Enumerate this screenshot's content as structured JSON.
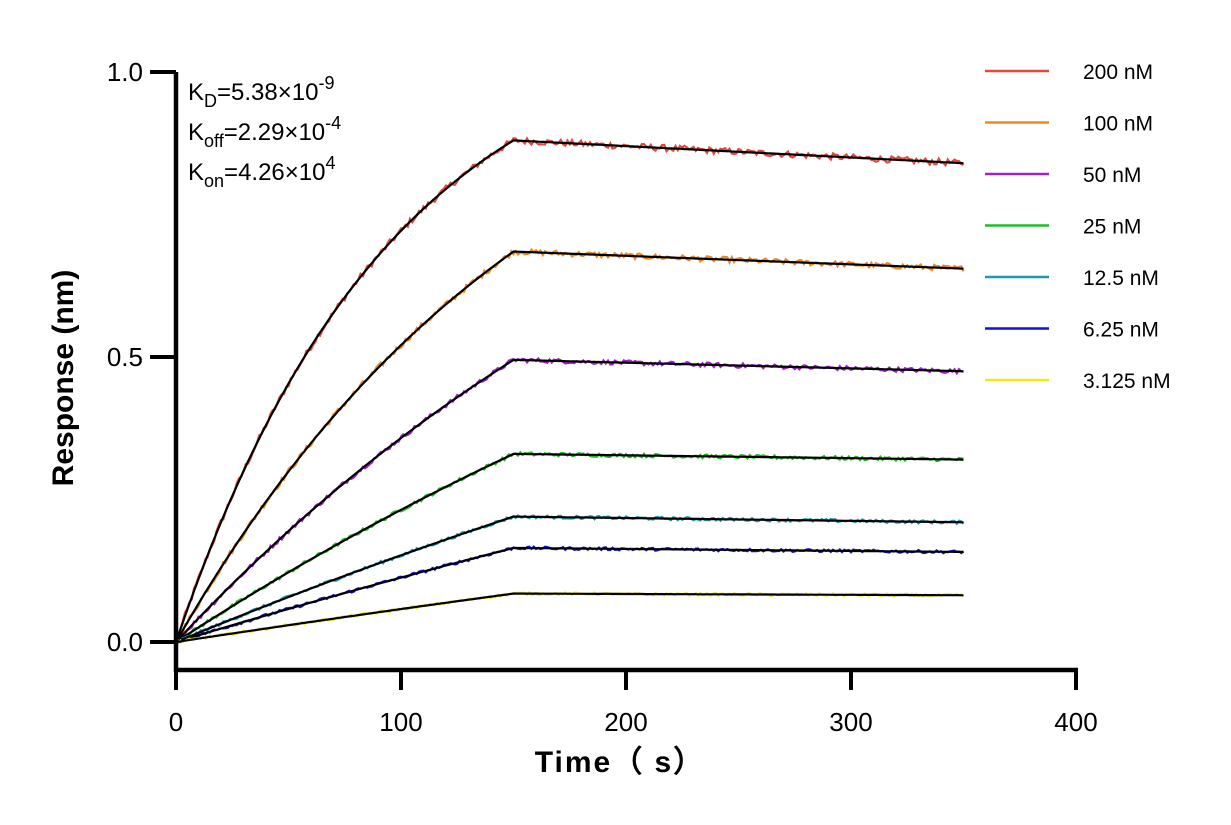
{
  "chart_data": {
    "type": "line",
    "xlabel": "Time（ s）",
    "ylabel": "Response (nm)",
    "xlim": [
      0,
      400
    ],
    "ylim": [
      -0.05,
      1.0
    ],
    "x_ticks": [
      "0",
      "100",
      "200",
      "300",
      "400"
    ],
    "y_ticks": [
      "0.0",
      "0.5",
      "1.0"
    ],
    "grid": false,
    "legend_position": "right",
    "association_end": 150,
    "x_end": 350,
    "annotations": [
      {
        "base": "K",
        "sub": "D",
        "value": "=5.38×10",
        "exp": "-9"
      },
      {
        "base": "K",
        "sub": "off",
        "value": "=2.29×10",
        "exp": "-4"
      },
      {
        "base": "K",
        "sub": "on",
        "value": "=4.26×10",
        "exp": "4"
      }
    ],
    "fit_color": "#000000",
    "series": [
      {
        "name": "200 nM",
        "color": "#e8473c",
        "plateau": 0.88,
        "rate": 0.0105,
        "end": 0.84
      },
      {
        "name": "100 nM",
        "color": "#f08a1e",
        "plateau": 0.685,
        "rate": 0.006,
        "end": 0.655
      },
      {
        "name": "50 nM",
        "color": "#a020d0",
        "plateau": 0.495,
        "rate": 0.0035,
        "end": 0.475
      },
      {
        "name": "25 nM",
        "color": "#1fbf1f",
        "plateau": 0.33,
        "rate": 0.0022,
        "end": 0.32
      },
      {
        "name": "12.5 nM",
        "color": "#1a9aaa",
        "plateau": 0.22,
        "rate": 0.0015,
        "end": 0.21
      },
      {
        "name": "6.25 nM",
        "color": "#1010d8",
        "plateau": 0.165,
        "rate": 0.0011,
        "end": 0.158
      },
      {
        "name": "3.125 nM",
        "color": "#f2ea10",
        "plateau": 0.085,
        "rate": 0.0008,
        "end": 0.082
      }
    ]
  }
}
